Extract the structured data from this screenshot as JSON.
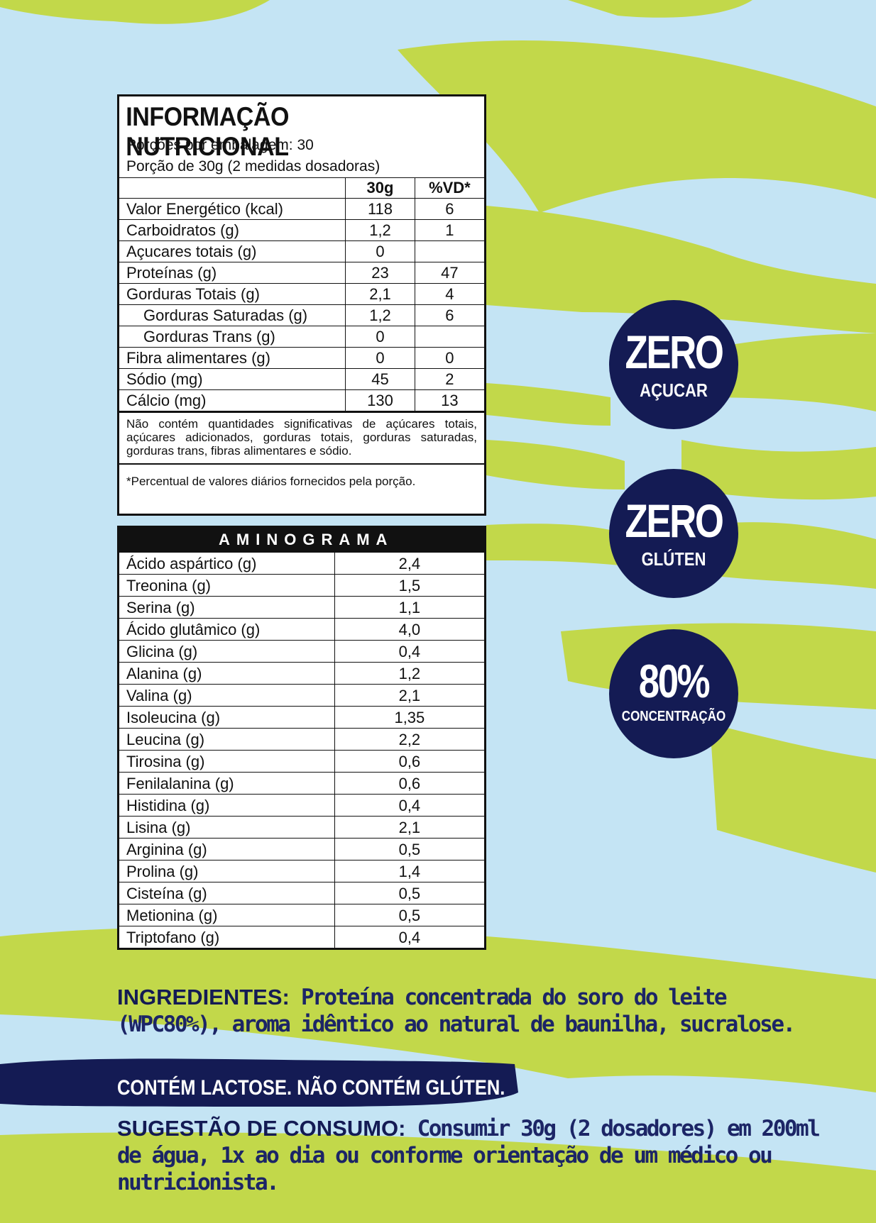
{
  "nutrition": {
    "title": "INFORMAÇÃO NUTRICIONAL",
    "servings_per_package": "Porções por embalagem: 30",
    "serving_size": "Porção de 30g (2 medidas dosadoras)",
    "headers": [
      "",
      "30g",
      "%VD*"
    ],
    "rows": [
      {
        "name": "Valor Energético (kcal)",
        "amount": "118",
        "dv": "6"
      },
      {
        "name": "Carboidratos (g)",
        "amount": "1,2",
        "dv": "1"
      },
      {
        "name": "Açucares totais (g)",
        "amount": "0",
        "dv": ""
      },
      {
        "name": "Proteínas (g)",
        "amount": "23",
        "dv": "47"
      },
      {
        "name": "Gorduras Totais (g)",
        "amount": "2,1",
        "dv": "4"
      },
      {
        "name": "Gorduras Saturadas (g)",
        "amount": "1,2",
        "dv": "6"
      },
      {
        "name": "Gorduras Trans (g)",
        "amount": "0",
        "dv": ""
      },
      {
        "name": "Fibra alimentares (g)",
        "amount": "0",
        "dv": "0"
      },
      {
        "name": "Sódio (mg)",
        "amount": "45",
        "dv": "2"
      },
      {
        "name": "Cálcio (mg)",
        "amount": "130",
        "dv": "13"
      }
    ],
    "note": "Não contém quantidades significativas de açúcares totais, açúcares adicionados, gorduras totais, gorduras saturadas, gorduras trans, fibras alimentares e sódio.",
    "footnote": "*Percentual de valores diários fornecidos pela porção."
  },
  "aminogram": {
    "title": "AMINOGRAMA",
    "rows": [
      {
        "name": "Ácido aspártico (g)",
        "value": "2,4"
      },
      {
        "name": "Treonina (g)",
        "value": "1,5"
      },
      {
        "name": "Serina (g)",
        "value": "1,1"
      },
      {
        "name": "Ácido glutâmico (g)",
        "value": "4,0"
      },
      {
        "name": "Glicina (g)",
        "value": "0,4"
      },
      {
        "name": "Alanina (g)",
        "value": "1,2"
      },
      {
        "name": "Valina (g)",
        "value": "2,1"
      },
      {
        "name": "Isoleucina (g)",
        "value": "1,35"
      },
      {
        "name": "Leucina (g)",
        "value": "2,2"
      },
      {
        "name": "Tirosina (g)",
        "value": "0,6"
      },
      {
        "name": "Fenilalanina (g)",
        "value": "0,6"
      },
      {
        "name": "Histidina (g)",
        "value": "0,4"
      },
      {
        "name": "Lisina (g)",
        "value": "2,1"
      },
      {
        "name": "Arginina (g)",
        "value": "0,5"
      },
      {
        "name": "Prolina (g)",
        "value": "1,4"
      },
      {
        "name": "Cisteína (g)",
        "value": "0,5"
      },
      {
        "name": "Metionina (g)",
        "value": "0,5"
      },
      {
        "name": "Triptofano (g)",
        "value": "0,4"
      }
    ]
  },
  "badges": [
    {
      "big": "ZERO",
      "small": "AÇUCAR"
    },
    {
      "big": "ZERO",
      "small": "GLÚTEN"
    },
    {
      "big": "80%",
      "small": "CONCENTRAÇÃO"
    }
  ],
  "ingredients": {
    "label": "INGREDIENTES:",
    "text": " Proteína concentrada do soro do leite (WPC80%), aroma idêntico ao natural de baunilha, sucralose."
  },
  "allergen": "CONTÉM LACTOSE. NÃO CONTÉM GLÚTEN.",
  "suggestion": {
    "label": "SUGESTÃO DE CONSUMO:",
    "text": " Consumir 30g (2 dosadores) em 200ml de água, 1x ao dia ou conforme orientação de um médico ou nutricionista."
  },
  "colors": {
    "background": "#c4e4f4",
    "green_brush": "#c2d84a",
    "navy": "#141b54",
    "table_border": "#111111"
  }
}
